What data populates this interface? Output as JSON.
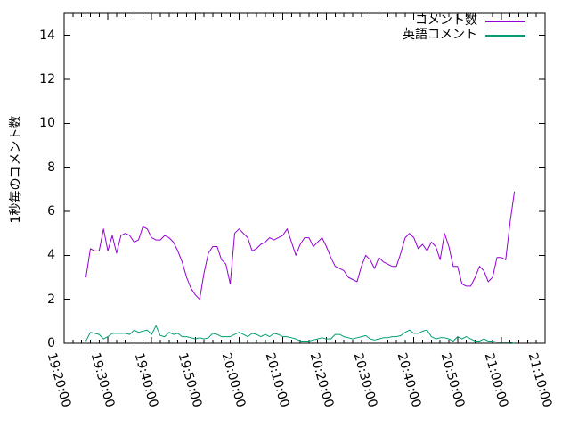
{
  "chart_data": {
    "type": "line",
    "title": "",
    "xlabel": "",
    "ylabel": "1秒毎のコメント数",
    "grid": false,
    "legend_position": "top-right-inside",
    "background_color": "#ffffff",
    "axis_color": "#000000",
    "x_axis": {
      "unit": "minutes_since_19:20:00",
      "range_minutes": [
        0,
        110
      ],
      "tick_minutes": [
        0,
        10,
        20,
        30,
        40,
        50,
        60,
        70,
        80,
        90,
        100,
        110
      ],
      "tick_labels": [
        "19:20:00",
        "19:30:00",
        "19:40:00",
        "19:50:00",
        "20:00:00",
        "20:10:00",
        "20:20:00",
        "20:30:00",
        "20:40:00",
        "20:50:00",
        "21:00:00",
        "21:10:00"
      ],
      "minor_tick_interval_minutes": 2
    },
    "y_axis": {
      "range": [
        0,
        15
      ],
      "ticks": [
        0,
        2,
        4,
        6,
        8,
        10,
        12,
        14
      ]
    },
    "x_minutes": [
      5,
      6,
      7,
      8,
      9,
      10,
      11,
      12,
      13,
      14,
      15,
      16,
      17,
      18,
      19,
      20,
      21,
      22,
      23,
      24,
      25,
      26,
      27,
      28,
      29,
      30,
      31,
      32,
      33,
      34,
      35,
      36,
      37,
      38,
      39,
      40,
      41,
      42,
      43,
      44,
      45,
      46,
      47,
      48,
      49,
      50,
      51,
      52,
      53,
      54,
      55,
      56,
      57,
      58,
      59,
      60,
      61,
      62,
      63,
      64,
      65,
      66,
      67,
      68,
      69,
      70,
      71,
      72,
      73,
      74,
      75,
      76,
      77,
      78,
      79,
      80,
      81,
      82,
      83,
      84,
      85,
      86,
      87,
      88,
      89,
      90,
      91,
      92,
      93,
      94,
      95,
      96,
      97,
      98,
      99,
      100,
      101,
      102,
      103
    ],
    "series": [
      {
        "name": "コメント数",
        "color": "#9400d3",
        "values": [
          3.0,
          4.3,
          4.2,
          4.2,
          5.2,
          4.2,
          4.9,
          4.1,
          4.9,
          5.0,
          4.9,
          4.6,
          4.7,
          5.3,
          5.2,
          4.8,
          4.7,
          4.7,
          4.9,
          4.8,
          4.6,
          4.2,
          3.7,
          3.0,
          2.5,
          2.2,
          2.0,
          3.2,
          4.1,
          4.4,
          4.4,
          3.8,
          3.6,
          2.7,
          5.0,
          5.2,
          5.0,
          4.8,
          4.2,
          4.3,
          4.5,
          4.6,
          4.8,
          4.7,
          4.8,
          4.9,
          5.2,
          4.6,
          4.0,
          4.5,
          4.8,
          4.8,
          4.4,
          4.6,
          4.8,
          4.4,
          3.9,
          3.5,
          3.4,
          3.3,
          3.0,
          2.9,
          2.8,
          3.5,
          4.0,
          3.8,
          3.4,
          3.9,
          3.7,
          3.6,
          3.5,
          3.5,
          4.1,
          4.8,
          5.0,
          4.8,
          4.3,
          4.5,
          4.2,
          4.6,
          4.4,
          3.8,
          5.0,
          4.4,
          3.5,
          3.5,
          2.7,
          2.6,
          2.6,
          3.0,
          3.5,
          3.3,
          2.8,
          3.0,
          3.9,
          3.9,
          3.8,
          5.5,
          6.9
        ]
      },
      {
        "name": "英語コメント",
        "color": "#009e73",
        "values": [
          0.1,
          0.5,
          0.45,
          0.4,
          0.2,
          0.3,
          0.45,
          0.45,
          0.45,
          0.45,
          0.4,
          0.6,
          0.5,
          0.55,
          0.6,
          0.4,
          0.8,
          0.35,
          0.3,
          0.5,
          0.4,
          0.45,
          0.3,
          0.3,
          0.25,
          0.2,
          0.25,
          0.2,
          0.25,
          0.45,
          0.4,
          0.3,
          0.3,
          0.3,
          0.4,
          0.5,
          0.4,
          0.3,
          0.45,
          0.4,
          0.3,
          0.4,
          0.3,
          0.45,
          0.4,
          0.3,
          0.3,
          0.25,
          0.2,
          0.1,
          0.1,
          0.1,
          0.15,
          0.2,
          0.25,
          0.2,
          0.2,
          0.4,
          0.4,
          0.3,
          0.25,
          0.2,
          0.25,
          0.3,
          0.35,
          0.2,
          0.15,
          0.2,
          0.25,
          0.25,
          0.3,
          0.3,
          0.35,
          0.5,
          0.6,
          0.45,
          0.45,
          0.55,
          0.6,
          0.3,
          0.2,
          0.25,
          0.25,
          0.2,
          0.1,
          0.3,
          0.2,
          0.3,
          0.2,
          0.1,
          0.1,
          0.2,
          0.1,
          0.1,
          0.05,
          0.05,
          0.05,
          0.05,
          0.0
        ]
      }
    ]
  }
}
